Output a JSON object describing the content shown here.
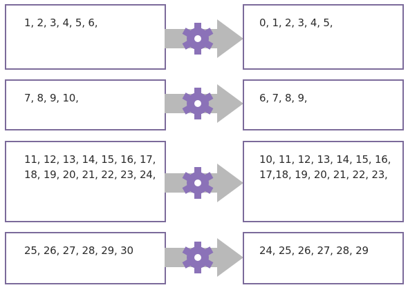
{
  "rows": [
    {
      "input": "1, 2, 3, 4, 5, 6,",
      "output": "0, 1, 2, 3, 4, 5,"
    },
    {
      "input": "7, 8, 9, 10,",
      "output": "6, 7, 8, 9,"
    },
    {
      "input": "11, 12, 13, 14, 15, 16, 17,\n18, 19, 20, 21, 22, 23, 24,",
      "output": "10, 11, 12, 13, 14, 15, 16,\n17,18, 19, 20, 21, 22, 23,"
    },
    {
      "input": "25, 26, 27, 28, 29, 30",
      "output": "24, 25, 26, 27, 28, 29"
    }
  ],
  "icons": {
    "gear": "gear-icon",
    "arrow": "arrow-right-icon"
  },
  "colors": {
    "border": "#7b6a9a",
    "gear": "#8b72b8",
    "arrow": "#b9b9b9"
  }
}
